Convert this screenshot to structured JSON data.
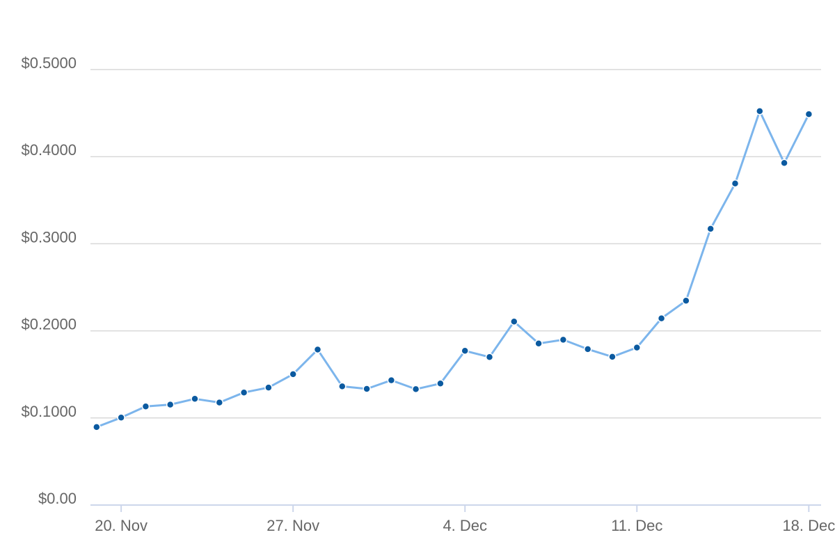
{
  "chart_data": {
    "type": "line",
    "title": "",
    "xlabel": "",
    "ylabel": "",
    "x_tick_labels": [
      "20. Nov",
      "27. Nov",
      "4. Dec",
      "11. Dec",
      "18. Dec"
    ],
    "y_tick_labels": [
      "$0.00",
      "$0.1000",
      "$0.2000",
      "$0.3000",
      "$0.4000",
      "$0.5000"
    ],
    "y_ticks": [
      0,
      0.1,
      0.2,
      0.3,
      0.4,
      0.5
    ],
    "ylim": [
      0,
      0.5
    ],
    "xlim": [
      "2017-11-18T18:00",
      "2017-12-18T12:00"
    ],
    "grid": "horizontal",
    "legend": "none",
    "colors": {
      "line": "#7cb5ec",
      "marker": "#0b5aa0",
      "grid": "#d9d9d9",
      "axis": "#ccd6eb",
      "label": "#666666"
    },
    "series": [
      {
        "x": [
          "2017-11-19",
          "2017-11-20",
          "2017-11-21",
          "2017-11-22",
          "2017-11-23",
          "2017-11-24",
          "2017-11-25",
          "2017-11-26",
          "2017-11-27",
          "2017-11-28",
          "2017-11-29",
          "2017-11-30",
          "2017-12-01",
          "2017-12-02",
          "2017-12-03",
          "2017-12-04",
          "2017-12-05",
          "2017-12-06",
          "2017-12-07",
          "2017-12-08",
          "2017-12-09",
          "2017-12-10",
          "2017-12-11",
          "2017-12-12",
          "2017-12-13",
          "2017-12-14",
          "2017-12-15",
          "2017-12-16",
          "2017-12-17",
          "2017-12-18"
        ],
        "values": [
          0.0895,
          0.1004,
          0.1132,
          0.1153,
          0.122,
          0.1177,
          0.1292,
          0.1349,
          0.1502,
          0.1785,
          0.1363,
          0.1334,
          0.1433,
          0.1331,
          0.1395,
          0.1771,
          0.1699,
          0.2107,
          0.1855,
          0.1898,
          0.179,
          0.1702,
          0.1808,
          0.2144,
          0.2346,
          0.3172,
          0.3692,
          0.4523,
          0.3927,
          0.4488
        ]
      }
    ]
  }
}
